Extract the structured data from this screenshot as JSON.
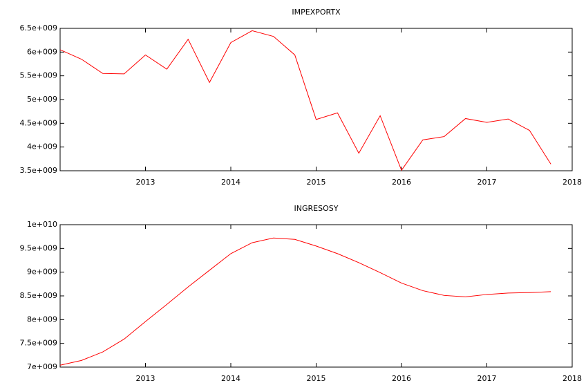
{
  "chart_data": [
    {
      "type": "line",
      "title": "IMPEXPORTX",
      "x": [
        2012,
        2012.25,
        2012.5,
        2012.75,
        2013,
        2013.25,
        2013.5,
        2013.75,
        2014,
        2014.25,
        2014.5,
        2014.75,
        2015,
        2015.25,
        2015.5,
        2015.75,
        2016,
        2016.25,
        2016.5,
        2016.75,
        2017,
        2017.25,
        2017.5,
        2017.75
      ],
      "series": [
        {
          "color": "#ff0000",
          "values": [
            6050000000,
            5850000000,
            5550000000,
            5540000000,
            5940000000,
            5640000000,
            6270000000,
            5360000000,
            6200000000,
            6450000000,
            6330000000,
            5940000000,
            4580000000,
            4720000000,
            3870000000,
            4660000000,
            3510000000,
            4150000000,
            4220000000,
            4600000000,
            4520000000,
            4590000000,
            4350000000,
            3640000000
          ]
        }
      ],
      "xlim": [
        2012,
        2018
      ],
      "xticks": [
        2013,
        2014,
        2015,
        2016,
        2017,
        2018
      ],
      "ylim": [
        3500000000,
        6500000000
      ],
      "yticks": [
        {
          "value": 3500000000,
          "label": "3.5e+009"
        },
        {
          "value": 4000000000,
          "label": "4e+009"
        },
        {
          "value": 4500000000,
          "label": "4.5e+009"
        },
        {
          "value": 5000000000,
          "label": "5e+009"
        },
        {
          "value": 5500000000,
          "label": "5.5e+009"
        },
        {
          "value": 6000000000,
          "label": "6e+009"
        },
        {
          "value": 6500000000,
          "label": "6.5e+009"
        }
      ]
    },
    {
      "type": "line",
      "title": "INGRESOSY",
      "x": [
        2012,
        2012.25,
        2012.5,
        2012.75,
        2013,
        2013.25,
        2013.5,
        2013.75,
        2014,
        2014.25,
        2014.5,
        2014.75,
        2015,
        2015.25,
        2015.5,
        2015.75,
        2016,
        2016.25,
        2016.5,
        2016.75,
        2017,
        2017.25,
        2017.5,
        2017.75
      ],
      "series": [
        {
          "color": "#ff0000",
          "values": [
            7040000000,
            7140000000,
            7320000000,
            7590000000,
            7960000000,
            8320000000,
            8690000000,
            9040000000,
            9390000000,
            9620000000,
            9720000000,
            9690000000,
            9550000000,
            9390000000,
            9200000000,
            8990000000,
            8770000000,
            8610000000,
            8510000000,
            8480000000,
            8530000000,
            8560000000,
            8570000000,
            8590000000
          ]
        }
      ],
      "xlim": [
        2012,
        2018
      ],
      "xticks": [
        2013,
        2014,
        2015,
        2016,
        2017,
        2018
      ],
      "ylim": [
        7000000000,
        10000000000
      ],
      "yticks": [
        {
          "value": 7000000000,
          "label": "7e+009"
        },
        {
          "value": 7500000000,
          "label": "7.5e+009"
        },
        {
          "value": 8000000000,
          "label": "8e+009"
        },
        {
          "value": 8500000000,
          "label": "8.5e+009"
        },
        {
          "value": 9000000000,
          "label": "9e+009"
        },
        {
          "value": 9500000000,
          "label": "9.5e+009"
        },
        {
          "value": 10000000000,
          "label": "1e+010"
        }
      ]
    }
  ]
}
